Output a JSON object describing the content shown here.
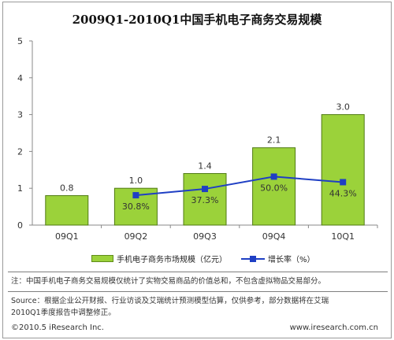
{
  "chart_data": {
    "type": "bar",
    "title": "2009Q1-2010Q1中国手机电子商务交易规模",
    "categories": [
      "09Q1",
      "09Q2",
      "09Q3",
      "09Q4",
      "10Q1"
    ],
    "series": [
      {
        "name": "手机电子商务市场规模（亿元）",
        "type": "bar",
        "values": [
          0.8,
          1.0,
          1.4,
          2.1,
          3.0
        ],
        "value_labels": [
          "0.8",
          "1.0",
          "1.4",
          "2.1",
          "3.0"
        ],
        "color": "#9bd23a"
      },
      {
        "name": "增长率（%）",
        "type": "line",
        "values": [
          null,
          30.8,
          37.3,
          50.0,
          44.3
        ],
        "value_labels": [
          "30.8%",
          "37.3%",
          "50.0%",
          "44.3%"
        ],
        "color": "#1f3fc4"
      }
    ],
    "y_axis": {
      "min": 0,
      "max": 5,
      "ticks": [
        "0",
        "1",
        "2",
        "3",
        "4",
        "5"
      ]
    },
    "line_plot_scale": {
      "min": 0,
      "max": 190
    },
    "grid": false,
    "legend": "bottom"
  },
  "notes": {
    "note": "注：中国手机电子商务交易规模仅统计了实物交易商品的价值总和，不包含虚拟物品交易部分。",
    "source_line1": "Source：根据企业公开财报、行业访谈及艾瑞统计预测模型估算，仅供参考，部分数据将在艾瑞",
    "source_line2": "2010Q1季度报告中调整修正。"
  },
  "footer": {
    "copyright": "©2010.5 iResearch Inc.",
    "website": "www.iresearch.com.cn"
  }
}
